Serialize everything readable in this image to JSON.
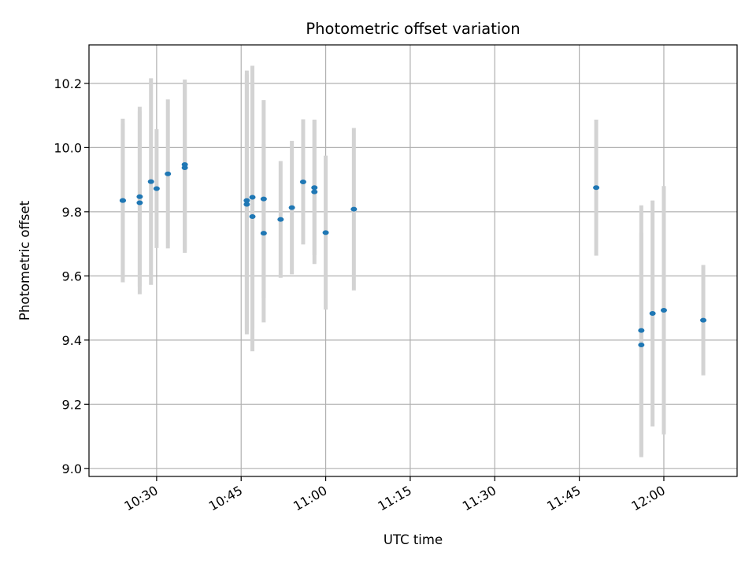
{
  "chart_data": {
    "type": "scatter",
    "title": "Photometric offset variation",
    "xlabel": "UTC time",
    "ylabel": "Photometric offset",
    "x_tick_labels": [
      "10:30",
      "10:45",
      "11:00",
      "11:15",
      "11:30",
      "11:45",
      "12:00"
    ],
    "y_tick_labels": [
      "9.0",
      "9.2",
      "9.4",
      "9.6",
      "9.8",
      "10.0",
      "10.2"
    ],
    "xlim": [
      "10:18",
      "12:13"
    ],
    "ylim": [
      8.975,
      10.32
    ],
    "grid": true,
    "colors": {
      "point": "#1f77b4",
      "errorbar": "#d3d3d3",
      "grid": "#b0b0b0"
    },
    "points": [
      {
        "time": "10:24",
        "value": 9.835,
        "err": 0.255
      },
      {
        "time": "10:24",
        "value": 9.835,
        "err": 0.24
      },
      {
        "time": "10:27",
        "value": 9.847,
        "err": 0.28
      },
      {
        "time": "10:27",
        "value": 9.828,
        "err": 0.285
      },
      {
        "time": "10:29",
        "value": 9.894,
        "err": 0.322
      },
      {
        "time": "10:30",
        "value": 9.872,
        "err": 0.185
      },
      {
        "time": "10:32",
        "value": 9.918,
        "err": 0.232
      },
      {
        "time": "10:35",
        "value": 9.937,
        "err": 0.265
      },
      {
        "time": "10:35",
        "value": 9.947,
        "err": 0.265
      },
      {
        "time": "10:46",
        "value": 9.823,
        "err": 0.405
      },
      {
        "time": "10:46",
        "value": 9.835,
        "err": 0.405
      },
      {
        "time": "10:47",
        "value": 9.785,
        "err": 0.42
      },
      {
        "time": "10:47",
        "value": 9.845,
        "err": 0.41
      },
      {
        "time": "10:49",
        "value": 9.733,
        "err": 0.278
      },
      {
        "time": "10:49",
        "value": 9.84,
        "err": 0.308
      },
      {
        "time": "10:52",
        "value": 9.776,
        "err": 0.182
      },
      {
        "time": "10:54",
        "value": 9.813,
        "err": 0.208
      },
      {
        "time": "10:56",
        "value": 9.893,
        "err": 0.195
      },
      {
        "time": "10:58",
        "value": 9.875,
        "err": 0.21
      },
      {
        "time": "10:58",
        "value": 9.862,
        "err": 0.225
      },
      {
        "time": "11:00",
        "value": 9.735,
        "err": 0.24
      },
      {
        "time": "11:05",
        "value": 9.808,
        "err": 0.253
      },
      {
        "time": "11:48",
        "value": 9.875,
        "err": 0.212
      },
      {
        "time": "11:56",
        "value": 9.43,
        "err": 0.39
      },
      {
        "time": "11:56",
        "value": 9.385,
        "err": 0.35
      },
      {
        "time": "11:58",
        "value": 9.483,
        "err": 0.352
      },
      {
        "time": "12:00",
        "value": 9.493,
        "err": 0.387
      },
      {
        "time": "12:07",
        "value": 9.462,
        "err": 0.172
      }
    ]
  }
}
